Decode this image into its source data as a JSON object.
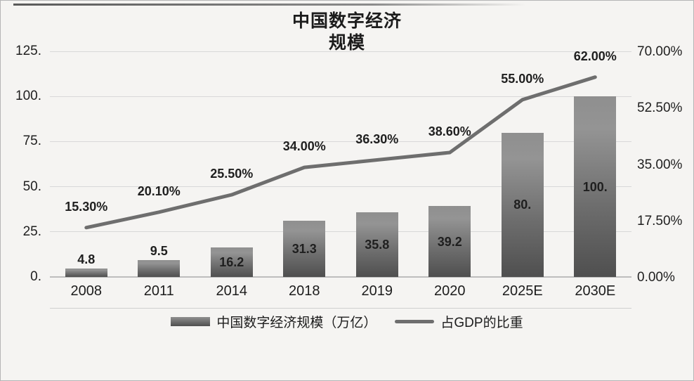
{
  "title": {
    "line1": "中国数字经济",
    "line2": "规模"
  },
  "chart_data": {
    "type": "bar+line",
    "categories": [
      "2008",
      "2011",
      "2014",
      "2018",
      "2019",
      "2020",
      "2025E",
      "2030E"
    ],
    "series": [
      {
        "name": "中国数字经济规模（万亿）",
        "type": "bar",
        "axis": "left",
        "values": [
          4.8,
          9.5,
          16.2,
          31.3,
          35.8,
          39.2,
          80,
          100
        ],
        "data_labels": [
          "4.8",
          "9.5",
          "16.2",
          "31.3",
          "35.8",
          "39.2",
          "80.",
          "100."
        ]
      },
      {
        "name": "占GDP的比重",
        "type": "line",
        "axis": "right",
        "values": [
          15.3,
          20.1,
          25.5,
          34.0,
          36.3,
          38.6,
          55.0,
          62.0
        ],
        "data_labels": [
          "15.30%",
          "20.10%",
          "25.50%",
          "34.00%",
          "36.30%",
          "38.60%",
          "55.00%",
          "62.00%"
        ]
      }
    ],
    "left_axis": {
      "min": 0,
      "max": 125,
      "tick_values": [
        0,
        25,
        50,
        75,
        100,
        125
      ],
      "tick_labels": [
        "0.",
        "25.",
        "50.",
        "75.",
        "100.",
        "125."
      ]
    },
    "right_axis": {
      "min": 0,
      "max": 70,
      "tick_values": [
        0,
        17.5,
        35,
        52.5,
        70
      ],
      "tick_labels": [
        "0.00%",
        "17.50%",
        "35.00%",
        "52.50%",
        "70.00%"
      ]
    },
    "grid": "horizontal",
    "legend_position": "bottom",
    "legend": [
      "中国数字经济规模（万亿）",
      "占GDP的比重"
    ]
  },
  "colors": {
    "bar_top": "#8f8f8f",
    "bar_bottom": "#4f4f4f",
    "line": "#6e6e6e",
    "grid": "#d8d8d8",
    "text": "#1c1c1c",
    "background": "#f5f4f2"
  }
}
